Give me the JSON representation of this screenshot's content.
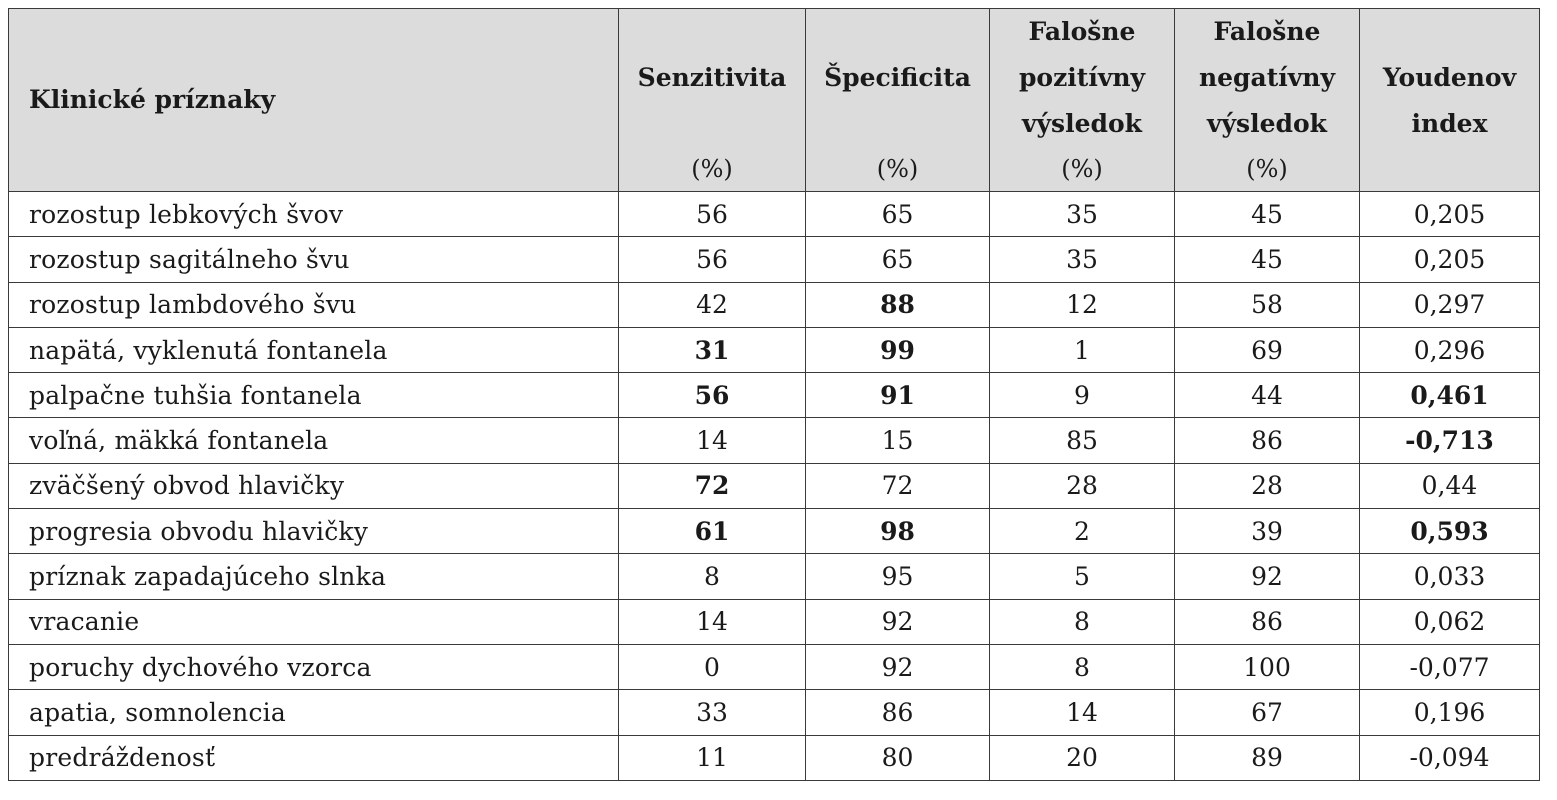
{
  "header": {
    "col0": "Klinické príznaky",
    "columns": [
      {
        "name": "Senzitivita",
        "unit": "(%)"
      },
      {
        "name": "Špecificita",
        "unit": "(%)"
      },
      {
        "name_lines": [
          "Falošne",
          "pozitívny",
          "výsledok"
        ],
        "unit": "(%)"
      },
      {
        "name_lines": [
          "Falošne",
          "negatívny",
          "výsledok"
        ],
        "unit": "(%)"
      },
      {
        "name_lines": [
          "Youdenov",
          "index"
        ],
        "unit": ""
      }
    ]
  },
  "rows": [
    {
      "label": "rozostup lebkových švov",
      "values": [
        "56",
        "65",
        "35",
        "45",
        "0,205"
      ],
      "bold": [
        false,
        false,
        false,
        false,
        false
      ]
    },
    {
      "label": "rozostup sagitálneho švu",
      "values": [
        "56",
        "65",
        "35",
        "45",
        "0,205"
      ],
      "bold": [
        false,
        false,
        false,
        false,
        false
      ]
    },
    {
      "label": "rozostup lambdového švu",
      "values": [
        "42",
        "88",
        "12",
        "58",
        "0,297"
      ],
      "bold": [
        false,
        true,
        false,
        false,
        false
      ]
    },
    {
      "label": "napätá, vyklenutá fontanela",
      "values": [
        "31",
        "99",
        "1",
        "69",
        "0,296"
      ],
      "bold": [
        true,
        true,
        false,
        false,
        false
      ]
    },
    {
      "label": "palpačne tuhšia fontanela",
      "values": [
        "56",
        "91",
        "9",
        "44",
        "0,461"
      ],
      "bold": [
        true,
        true,
        false,
        false,
        true
      ]
    },
    {
      "label": "voľná, mäkká fontanela",
      "values": [
        "14",
        "15",
        "85",
        "86",
        "-0,713"
      ],
      "bold": [
        false,
        false,
        false,
        false,
        true
      ]
    },
    {
      "label": "zväčšený obvod hlavičky",
      "values": [
        "72",
        "72",
        "28",
        "28",
        "0,44"
      ],
      "bold": [
        true,
        false,
        false,
        false,
        false
      ]
    },
    {
      "label": "progresia obvodu hlavičky",
      "values": [
        "61",
        "98",
        "2",
        "39",
        "0,593"
      ],
      "bold": [
        true,
        true,
        false,
        false,
        true
      ]
    },
    {
      "label": "príznak zapadajúceho slnka",
      "values": [
        "8",
        "95",
        "5",
        "92",
        "0,033"
      ],
      "bold": [
        false,
        false,
        false,
        false,
        false
      ]
    },
    {
      "label": "vracanie",
      "values": [
        "14",
        "92",
        "8",
        "86",
        "0,062"
      ],
      "bold": [
        false,
        false,
        false,
        false,
        false
      ]
    },
    {
      "label": "poruchy dychového vzorca",
      "values": [
        "0",
        "92",
        "8",
        "100",
        "-0,077"
      ],
      "bold": [
        false,
        false,
        false,
        false,
        false
      ]
    },
    {
      "label": "apatia, somnolencia",
      "values": [
        "33",
        "86",
        "14",
        "67",
        "0,196"
      ],
      "bold": [
        false,
        false,
        false,
        false,
        false
      ]
    },
    {
      "label": "predráždenosť",
      "values": [
        "11",
        "80",
        "20",
        "89",
        "-0,094"
      ],
      "bold": [
        false,
        false,
        false,
        false,
        false
      ]
    }
  ]
}
